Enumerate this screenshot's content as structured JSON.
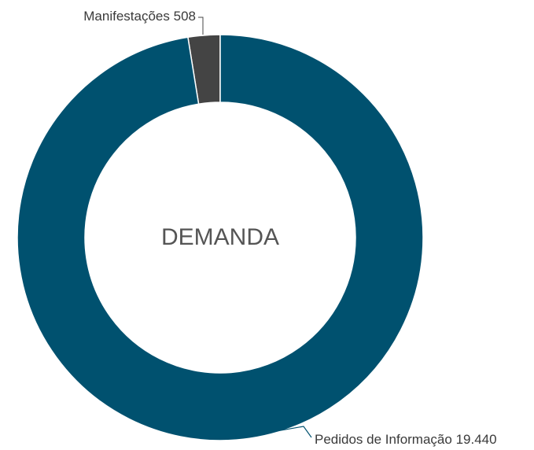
{
  "chart_data": {
    "type": "donut",
    "title": "DEMANDA",
    "categories": [
      "Pedidos de Informação",
      "Manifestações"
    ],
    "values": [
      19440,
      508
    ],
    "value_labels": [
      "19.440",
      "508"
    ],
    "colors": [
      "#00516f",
      "#444444"
    ]
  }
}
